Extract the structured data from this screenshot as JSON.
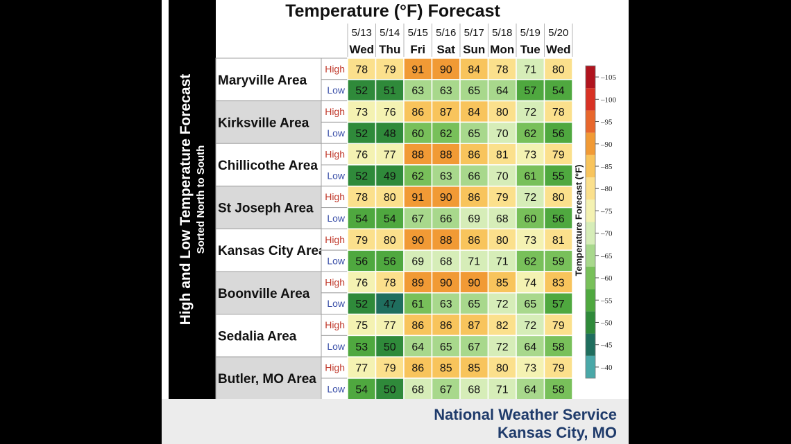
{
  "side_title": "High and Low Temperature Forecast",
  "side_subtitle": "Sorted North to South",
  "footer": {
    "line1": "National Weather Service",
    "line2": "Kansas City, MO"
  },
  "colors": {
    "high_label": "#c0392b",
    "low_label": "#3a4fa8",
    "footer_text": "#1f3b6b"
  },
  "chart_data": {
    "type": "table",
    "title": "Temperature (°F) Forecast",
    "dates": [
      "5/13",
      "5/14",
      "5/15",
      "5/16",
      "5/17",
      "5/18",
      "5/19",
      "5/20"
    ],
    "days": [
      "Wed",
      "Thu",
      "Fri",
      "Sat",
      "Sun",
      "Mon",
      "Tue",
      "Wed"
    ],
    "row_labels": [
      "High",
      "Low"
    ],
    "areas": [
      {
        "name": "Maryville Area",
        "high": [
          78,
          79,
          91,
          90,
          84,
          78,
          71,
          80
        ],
        "low": [
          52,
          51,
          63,
          63,
          65,
          64,
          57,
          54
        ]
      },
      {
        "name": "Kirksville Area",
        "high": [
          73,
          76,
          86,
          87,
          84,
          80,
          72,
          78
        ],
        "low": [
          52,
          48,
          60,
          62,
          65,
          70,
          62,
          56
        ]
      },
      {
        "name": "Chillicothe Area",
        "high": [
          76,
          77,
          88,
          88,
          86,
          81,
          73,
          79
        ],
        "low": [
          52,
          49,
          62,
          63,
          66,
          70,
          61,
          55
        ]
      },
      {
        "name": "St Joseph Area",
        "high": [
          78,
          80,
          91,
          90,
          86,
          79,
          72,
          80
        ],
        "low": [
          54,
          54,
          67,
          66,
          69,
          68,
          60,
          56
        ]
      },
      {
        "name": "Kansas City Area",
        "high": [
          79,
          80,
          90,
          88,
          86,
          80,
          73,
          81
        ],
        "low": [
          56,
          56,
          69,
          68,
          71,
          71,
          62,
          59
        ]
      },
      {
        "name": "Boonville Area",
        "high": [
          76,
          78,
          89,
          90,
          90,
          85,
          74,
          83
        ],
        "low": [
          52,
          47,
          61,
          63,
          65,
          72,
          65,
          57
        ]
      },
      {
        "name": "Sedalia Area",
        "high": [
          75,
          77,
          86,
          86,
          87,
          82,
          72,
          79
        ],
        "low": [
          53,
          50,
          64,
          65,
          67,
          72,
          64,
          58
        ]
      },
      {
        "name": "Butler, MO Area",
        "high": [
          77,
          79,
          86,
          85,
          85,
          80,
          73,
          79
        ],
        "low": [
          54,
          50,
          68,
          67,
          68,
          71,
          64,
          58
        ]
      }
    ],
    "legend": {
      "label": "Temperature Forecast (°F)",
      "ticks": [
        105,
        100,
        95,
        90,
        85,
        80,
        75,
        70,
        65,
        60,
        55,
        50,
        45,
        40
      ],
      "range": [
        37.5,
        107.5
      ],
      "bins": [
        {
          "min": 37.5,
          "max": 42.5,
          "color": "#4aa8a8"
        },
        {
          "min": 42.5,
          "max": 47.5,
          "color": "#1f6e5e"
        },
        {
          "min": 47.5,
          "max": 52.5,
          "color": "#2f8a3a"
        },
        {
          "min": 52.5,
          "max": 57.5,
          "color": "#4fa83f"
        },
        {
          "min": 57.5,
          "max": 62.5,
          "color": "#78c05a"
        },
        {
          "min": 62.5,
          "max": 67.5,
          "color": "#a8d88c"
        },
        {
          "min": 67.5,
          "max": 72.5,
          "color": "#d6edb8"
        },
        {
          "min": 72.5,
          "max": 77.5,
          "color": "#f4f2b2"
        },
        {
          "min": 77.5,
          "max": 82.5,
          "color": "#fbe08c"
        },
        {
          "min": 82.5,
          "max": 87.5,
          "color": "#f8c45c"
        },
        {
          "min": 87.5,
          "max": 92.5,
          "color": "#f19a35"
        },
        {
          "min": 92.5,
          "max": 97.5,
          "color": "#e8672c"
        },
        {
          "min": 97.5,
          "max": 102.5,
          "color": "#d83224"
        },
        {
          "min": 102.5,
          "max": 107.5,
          "color": "#b0141e"
        }
      ]
    }
  }
}
